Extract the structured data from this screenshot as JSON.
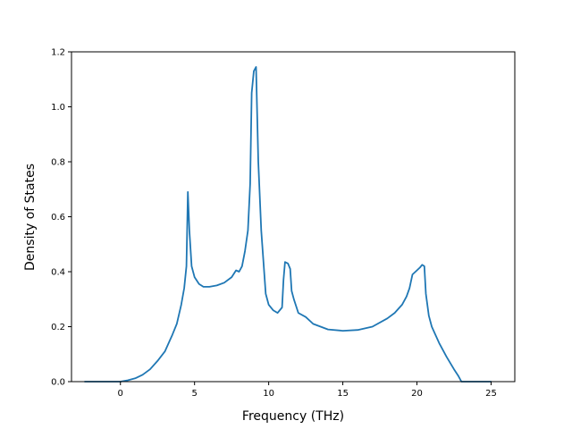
{
  "chart_data": {
    "type": "line",
    "title": "",
    "xlabel": "Frequency (THz)",
    "ylabel": "Density of States",
    "xlim": [
      -3.3,
      26.6
    ],
    "ylim": [
      0,
      1.2
    ],
    "xticks": [
      0,
      5,
      10,
      15,
      20,
      25
    ],
    "xtick_labels": [
      "0",
      "5",
      "10",
      "15",
      "20",
      "25"
    ],
    "yticks": [
      0.0,
      0.2,
      0.4,
      0.6,
      0.8,
      1.0,
      1.2
    ],
    "ytick_labels": [
      "0.0",
      "0.2",
      "0.4",
      "0.6",
      "0.8",
      "1.0",
      "1.2"
    ],
    "grid": false,
    "line_color": "#1f77b4",
    "series": [
      {
        "x": [
          -2.4,
          -1.0,
          0.0,
          0.5,
          1.0,
          1.5,
          2.0,
          2.5,
          3.0,
          3.5,
          3.8,
          4.1,
          4.3,
          4.45,
          4.55,
          4.65,
          4.8,
          5.0,
          5.3,
          5.6,
          6.0,
          6.5,
          7.0,
          7.5,
          7.8,
          8.0,
          8.2,
          8.4,
          8.6,
          8.75,
          8.85,
          9.0,
          9.15,
          9.3,
          9.5,
          9.8,
          10.0,
          10.3,
          10.6,
          10.9,
          11.0,
          11.1,
          11.3,
          11.45,
          11.55,
          11.7,
          12.0,
          12.5,
          13.0,
          14.0,
          15.0,
          16.0,
          17.0,
          18.0,
          18.5,
          19.0,
          19.3,
          19.5,
          19.7,
          20.0,
          20.2,
          20.35,
          20.5,
          20.6,
          20.8,
          21.0,
          21.5,
          22.0,
          22.5,
          22.8,
          23.0,
          24.0,
          25.0
        ],
        "y": [
          0.0,
          0.0,
          0.0,
          0.005,
          0.012,
          0.025,
          0.045,
          0.075,
          0.11,
          0.17,
          0.21,
          0.28,
          0.34,
          0.42,
          0.69,
          0.55,
          0.42,
          0.38,
          0.355,
          0.345,
          0.345,
          0.35,
          0.36,
          0.38,
          0.405,
          0.4,
          0.42,
          0.475,
          0.55,
          0.72,
          1.05,
          1.13,
          1.145,
          0.8,
          0.55,
          0.32,
          0.28,
          0.26,
          0.25,
          0.27,
          0.37,
          0.435,
          0.43,
          0.41,
          0.33,
          0.3,
          0.25,
          0.235,
          0.21,
          0.19,
          0.185,
          0.188,
          0.2,
          0.23,
          0.25,
          0.28,
          0.31,
          0.34,
          0.39,
          0.405,
          0.415,
          0.425,
          0.42,
          0.32,
          0.24,
          0.2,
          0.14,
          0.09,
          0.045,
          0.02,
          0.0,
          0.0,
          0.0
        ]
      }
    ]
  }
}
